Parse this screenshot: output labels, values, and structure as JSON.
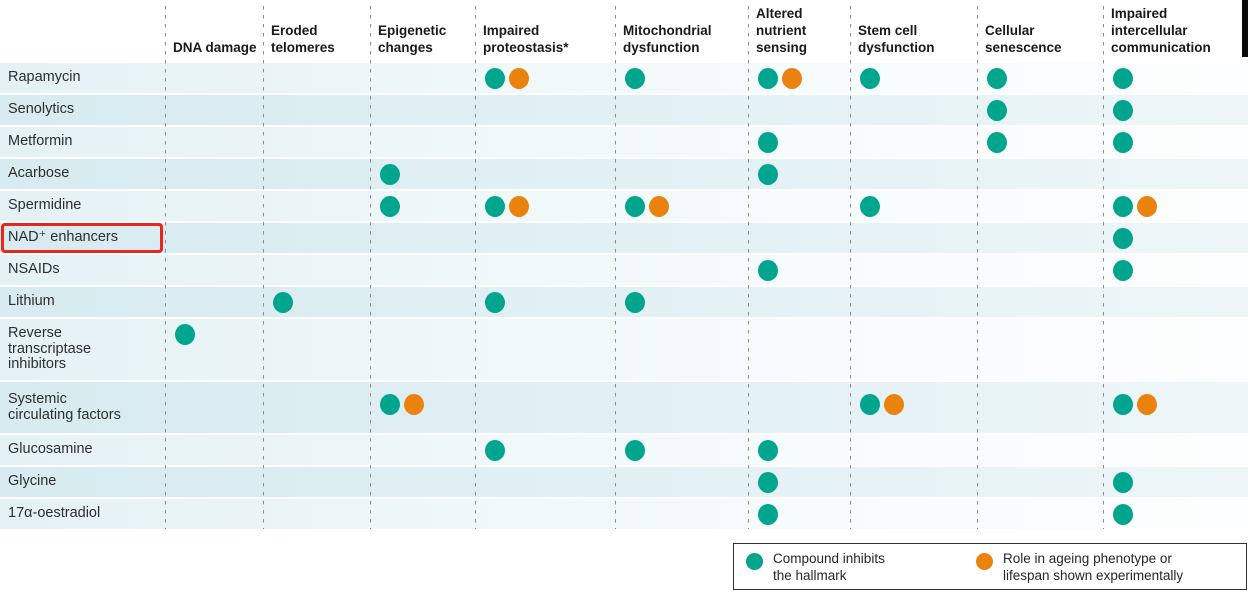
{
  "colors": {
    "teal": "#00a58e",
    "orange": "#ea830e",
    "highlight_red": "#e8261a"
  },
  "legend": {
    "items": [
      {
        "color": "teal",
        "label": "Compound inhibits the hallmark"
      },
      {
        "color": "orange",
        "label": "Role in ageing phenotype or lifespan shown experimentally"
      }
    ]
  },
  "chart_data": {
    "type": "table",
    "subtype": "dot-matrix",
    "description": "Candidate anti-ageing compounds (rows) versus hallmarks of ageing (columns). T = teal dot (compound inhibits the hallmark), O = orange dot (role in ageing phenotype or lifespan shown experimentally).",
    "columns": [
      "DNA damage",
      "Eroded telomeres",
      "Epigenetic changes",
      "Impaired proteostasis*",
      "Mitochondrial dysfunction",
      "Altered nutrient sensing",
      "Stem cell dysfunction",
      "Cellular senescence",
      "Impaired intercellular communication"
    ],
    "cell_code_legend": {
      "T": "Compound inhibits the hallmark",
      "TO": "Compound inhibits the hallmark + role shown experimentally",
      "": "no relationship shown"
    },
    "rows": [
      {
        "label": "Rapamycin",
        "highlighted": false,
        "cells": [
          "",
          "",
          "",
          "TO",
          "T",
          "TO",
          "T",
          "T",
          "T"
        ]
      },
      {
        "label": "Senolytics",
        "highlighted": false,
        "cells": [
          "",
          "",
          "",
          "",
          "",
          "",
          "",
          "T",
          "T"
        ]
      },
      {
        "label": "Metformin",
        "highlighted": false,
        "cells": [
          "",
          "",
          "",
          "",
          "",
          "T",
          "",
          "T",
          "T"
        ]
      },
      {
        "label": "Acarbose",
        "highlighted": false,
        "cells": [
          "",
          "",
          "T",
          "",
          "",
          "T",
          "",
          "",
          ""
        ]
      },
      {
        "label": "Spermidine",
        "highlighted": false,
        "cells": [
          "",
          "",
          "T",
          "TO",
          "TO",
          "",
          "T",
          "",
          "TO"
        ]
      },
      {
        "label": "NAD⁺ enhancers",
        "highlighted": true,
        "cells": [
          "",
          "",
          "",
          "",
          "",
          "",
          "",
          "",
          "T"
        ]
      },
      {
        "label": "NSAIDs",
        "highlighted": false,
        "cells": [
          "",
          "",
          "",
          "",
          "",
          "T",
          "",
          "",
          "T"
        ]
      },
      {
        "label": "Lithium",
        "highlighted": false,
        "cells": [
          "",
          "T",
          "",
          "T",
          "T",
          "",
          "",
          "",
          ""
        ]
      },
      {
        "label": "Reverse\ntranscriptase\ninhibitors",
        "highlighted": false,
        "cells": [
          "T",
          "",
          "",
          "",
          "",
          "",
          "",
          "",
          ""
        ]
      },
      {
        "label": "Systemic\ncirculating factors",
        "highlighted": false,
        "cells": [
          "",
          "",
          "TO",
          "",
          "",
          "",
          "TO",
          "",
          "TO"
        ]
      },
      {
        "label": "Glucosamine",
        "highlighted": false,
        "cells": [
          "",
          "",
          "",
          "T",
          "T",
          "T",
          "",
          "",
          ""
        ]
      },
      {
        "label": "Glycine",
        "highlighted": false,
        "cells": [
          "",
          "",
          "",
          "",
          "",
          "T",
          "",
          "",
          "T"
        ]
      },
      {
        "label": "17α-oestradiol",
        "highlighted": false,
        "cells": [
          "",
          "",
          "",
          "",
          "",
          "T",
          "",
          "",
          "T"
        ]
      }
    ]
  }
}
